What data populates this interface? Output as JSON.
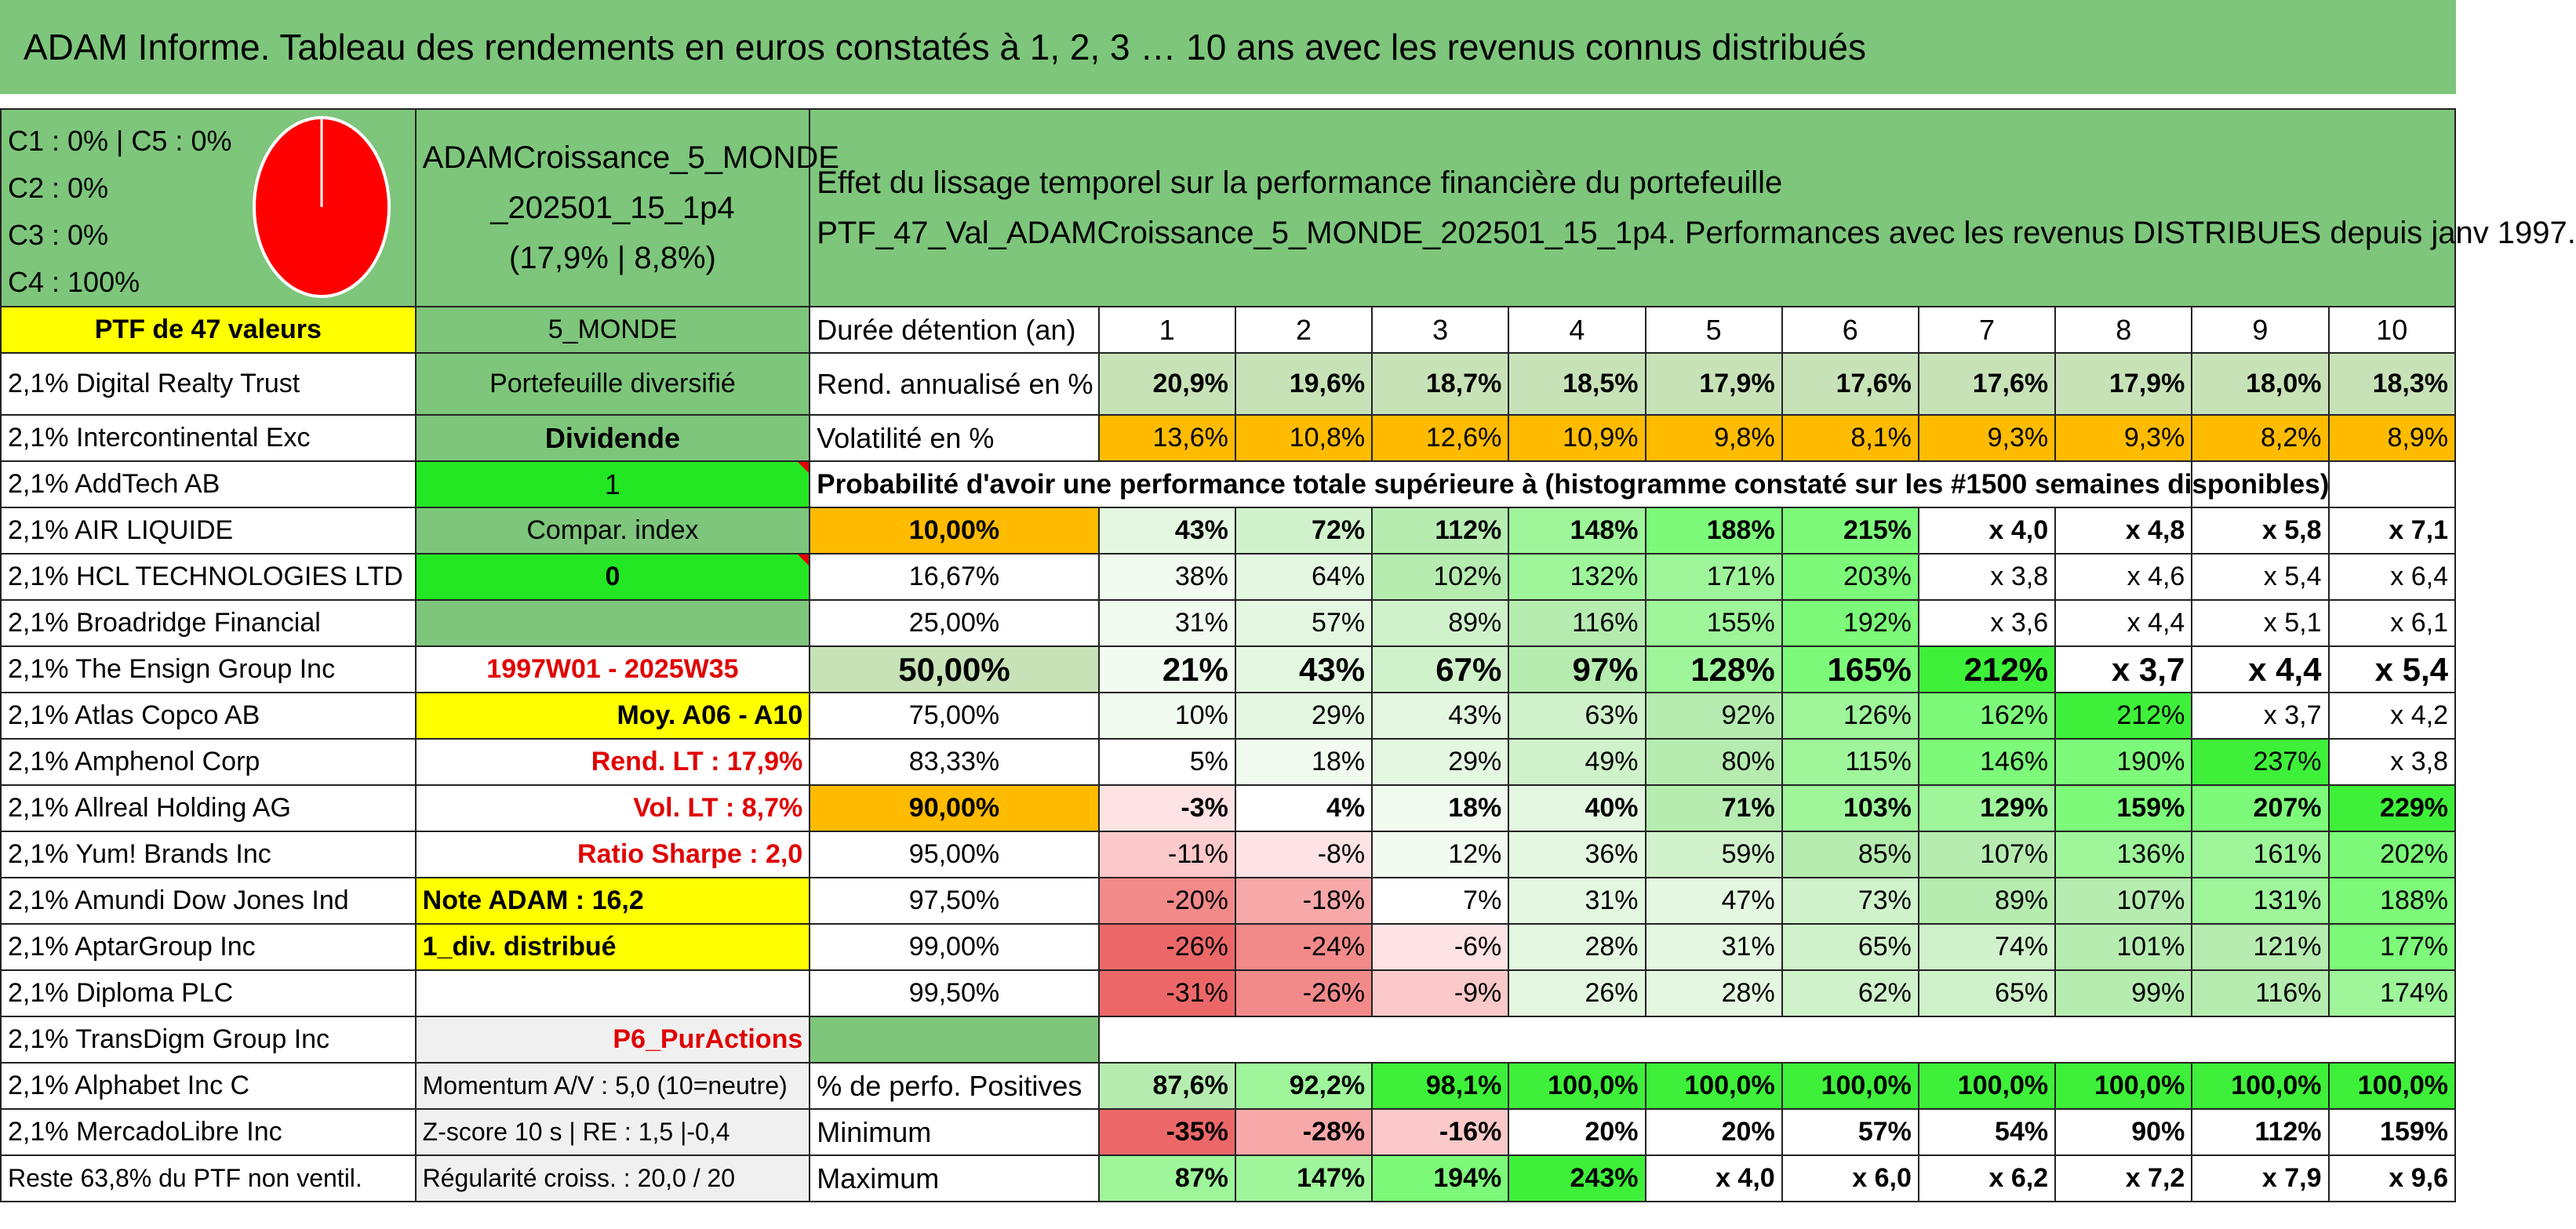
{
  "title": "ADAM Informe. Tableau des rendements en euros constatés à 1, 2, 3 … 10 ans avec les revenus connus distribués",
  "classes": [
    "C1 : 0% | C5 : 0%",
    "C2 : 0%",
    "C3 : 0%",
    "C4 : 100%"
  ],
  "pie": {
    "color": "#ff0000",
    "C4_share_percent": 100
  },
  "portfolio": {
    "name_line1": "ADAMCroissance_5_MONDE",
    "name_line2": "_202501_15_1p4",
    "name_line3": "(17,9% | 8,8%)"
  },
  "description_line1": "Effet du lissage temporel sur la performance financière du portefeuille",
  "description_line2": "PTF_47_Val_ADAMCroissance_5_MONDE_202501_15_1p4. Performances avec les revenus DISTRIBUES depuis janv 1997.",
  "ptf_label": "PTF de 47 valeurs",
  "zone": "5_MONDE",
  "duration_label": "Durée détention (an)",
  "years": [
    "1",
    "2",
    "3",
    "4",
    "5",
    "6",
    "7",
    "8",
    "9",
    "10"
  ],
  "holdings": [
    "2,1% Digital Realty Trust",
    "2,1% Intercontinental Exc",
    "2,1% AddTech AB",
    "2,1% AIR LIQUIDE",
    "2,1% HCL TECHNOLOGIES LTD",
    "2,1% Broadridge Financial",
    "2,1% The Ensign Group Inc",
    "2,1% Atlas Copco AB",
    "2,1% Amphenol Corp",
    "2,1% Allreal Holding AG",
    "2,1% Yum! Brands Inc",
    "2,1% Amundi Dow Jones Ind",
    "2,1% AptarGroup Inc",
    "2,1% Diploma PLC",
    "2,1% TransDigm Group Inc",
    "2,1% Alphabet Inc C",
    "2,1% MercadoLibre Inc",
    "Reste 63,8% du PTF non ventil."
  ],
  "side": {
    "diversified": "Portefeuille diversifié",
    "dividend": "Dividende",
    "one": "1",
    "compar_index": "Compar. index",
    "zero": "0",
    "period": "1997W01 - 2025W35",
    "moy": "Moy. A06 - A10",
    "rend_lt": "Rend. LT : 17,9%",
    "vol_lt": "Vol. LT : 8,7%",
    "sharpe": "Ratio Sharpe : 2,0",
    "note": "Note ADAM : 16,2",
    "div": "1_div. distribué",
    "strategy": "P6_PurActions",
    "momentum": "Momentum A/V : 5,0 (10=neutre)",
    "zscore": "Z-score 10 s | RE : 1,5 |-0,4",
    "regularity": "Régularité croiss. : 20,0 / 20"
  },
  "rend_label": "Rend. annualisé en %",
  "rend": [
    "20,9%",
    "19,6%",
    "18,7%",
    "18,5%",
    "17,9%",
    "17,6%",
    "17,6%",
    "17,9%",
    "18,0%",
    "18,3%"
  ],
  "vol_label": "Volatilité en %",
  "vol": [
    "13,6%",
    "10,8%",
    "12,6%",
    "10,9%",
    "9,8%",
    "8,1%",
    "9,3%",
    "9,3%",
    "8,2%",
    "8,9%"
  ],
  "prob_label": "Probabilité d'avoir une performance totale supérieure à (histogramme constaté sur les #1500 semaines disponibles)",
  "prob_rows": [
    {
      "p": "10,00%",
      "v": [
        "43%",
        "72%",
        "112%",
        "148%",
        "188%",
        "215%",
        "x 4,0",
        "x 4,8",
        "x 5,8",
        "x 7,1"
      ],
      "cls": [
        "g2",
        "g3",
        "g4",
        "g5",
        "g6",
        "g6",
        "g0",
        "g0",
        "g0",
        "g0"
      ],
      "bold": true,
      "pc": "orange"
    },
    {
      "p": "16,67%",
      "v": [
        "38%",
        "64%",
        "102%",
        "132%",
        "171%",
        "203%",
        "x 3,8",
        "x 4,6",
        "x 5,4",
        "x 6,4"
      ],
      "cls": [
        "g1",
        "g2",
        "g4",
        "g5",
        "g5",
        "g6",
        "g0",
        "g0",
        "g0",
        "g0"
      ],
      "bold": false,
      "pc": "g0"
    },
    {
      "p": "25,00%",
      "v": [
        "31%",
        "57%",
        "89%",
        "116%",
        "155%",
        "192%",
        "x 3,6",
        "x 4,4",
        "x 5,1",
        "x 6,1"
      ],
      "cls": [
        "g1",
        "g2",
        "g3",
        "g4",
        "g5",
        "g6",
        "g0",
        "g0",
        "g0",
        "g0"
      ],
      "bold": false,
      "pc": "g0"
    },
    {
      "p": "50,00%",
      "v": [
        "21%",
        "43%",
        "67%",
        "97%",
        "128%",
        "165%",
        "212%",
        "x 3,7",
        "x 4,4",
        "x 5,4"
      ],
      "cls": [
        "g1",
        "g2",
        "g3",
        "g4",
        "g5",
        "g6",
        "g7",
        "g0",
        "g0",
        "g0"
      ],
      "bold": true,
      "pc": "lightgreen",
      "big": true
    },
    {
      "p": "75,00%",
      "v": [
        "10%",
        "29%",
        "43%",
        "63%",
        "92%",
        "126%",
        "162%",
        "212%",
        "x 3,7",
        "x 4,2"
      ],
      "cls": [
        "g1",
        "g2",
        "g2",
        "g3",
        "g4",
        "g5",
        "g6",
        "g7",
        "g0",
        "g0"
      ],
      "bold": false,
      "pc": "g0"
    },
    {
      "p": "83,33%",
      "v": [
        "5%",
        "18%",
        "29%",
        "49%",
        "80%",
        "115%",
        "146%",
        "190%",
        "237%",
        "x 3,8"
      ],
      "cls": [
        "g0",
        "g1",
        "g2",
        "g3",
        "g4",
        "g5",
        "g6",
        "g6",
        "g7",
        "g0"
      ],
      "bold": false,
      "pc": "g0"
    },
    {
      "p": "90,00%",
      "v": [
        "-3%",
        "4%",
        "18%",
        "40%",
        "71%",
        "103%",
        "129%",
        "159%",
        "207%",
        "229%"
      ],
      "cls": [
        "r1",
        "g0",
        "g1",
        "g2",
        "g4",
        "g5",
        "g5",
        "g6",
        "g6",
        "g7"
      ],
      "bold": true,
      "pc": "orange"
    },
    {
      "p": "95,00%",
      "v": [
        "-11%",
        "-8%",
        "12%",
        "36%",
        "59%",
        "85%",
        "107%",
        "136%",
        "161%",
        "202%"
      ],
      "cls": [
        "r2",
        "r1",
        "g1",
        "g2",
        "g3",
        "g4",
        "g4",
        "g5",
        "g5",
        "g6"
      ],
      "bold": false,
      "pc": "g0"
    },
    {
      "p": "97,50%",
      "v": [
        "-20%",
        "-18%",
        "7%",
        "31%",
        "47%",
        "73%",
        "89%",
        "107%",
        "131%",
        "188%"
      ],
      "cls": [
        "r4",
        "r3",
        "g0",
        "g2",
        "g2",
        "g3",
        "g4",
        "g4",
        "g5",
        "g6"
      ],
      "bold": false,
      "pc": "g0"
    },
    {
      "p": "99,00%",
      "v": [
        "-26%",
        "-24%",
        "-6%",
        "28%",
        "31%",
        "65%",
        "74%",
        "101%",
        "121%",
        "177%"
      ],
      "cls": [
        "r5",
        "r4",
        "r1",
        "g2",
        "g2",
        "g3",
        "g3",
        "g4",
        "g4",
        "g6"
      ],
      "bold": false,
      "pc": "g0"
    },
    {
      "p": "99,50%",
      "v": [
        "-31%",
        "-26%",
        "-9%",
        "26%",
        "28%",
        "62%",
        "65%",
        "99%",
        "116%",
        "174%"
      ],
      "cls": [
        "r5",
        "r4",
        "r2",
        "g2",
        "g2",
        "g3",
        "g3",
        "g4",
        "g4",
        "g5"
      ],
      "bold": false,
      "pc": "g0"
    }
  ],
  "pos_label": "% de perfo. Positives",
  "pos": [
    "87,6%",
    "92,2%",
    "98,1%",
    "100,0%",
    "100,0%",
    "100,0%",
    "100,0%",
    "100,0%",
    "100,0%",
    "100,0%"
  ],
  "min_label": "Minimum",
  "min": [
    "-35%",
    "-28%",
    "-16%",
    "20%",
    "20%",
    "57%",
    "54%",
    "90%",
    "112%",
    "159%"
  ],
  "max_label": "Maximum",
  "max": [
    "87%",
    "147%",
    "194%",
    "243%",
    "x 4,0",
    "x 6,0",
    "x 6,2",
    "x 7,2",
    "x 7,9",
    "x 9,6"
  ]
}
